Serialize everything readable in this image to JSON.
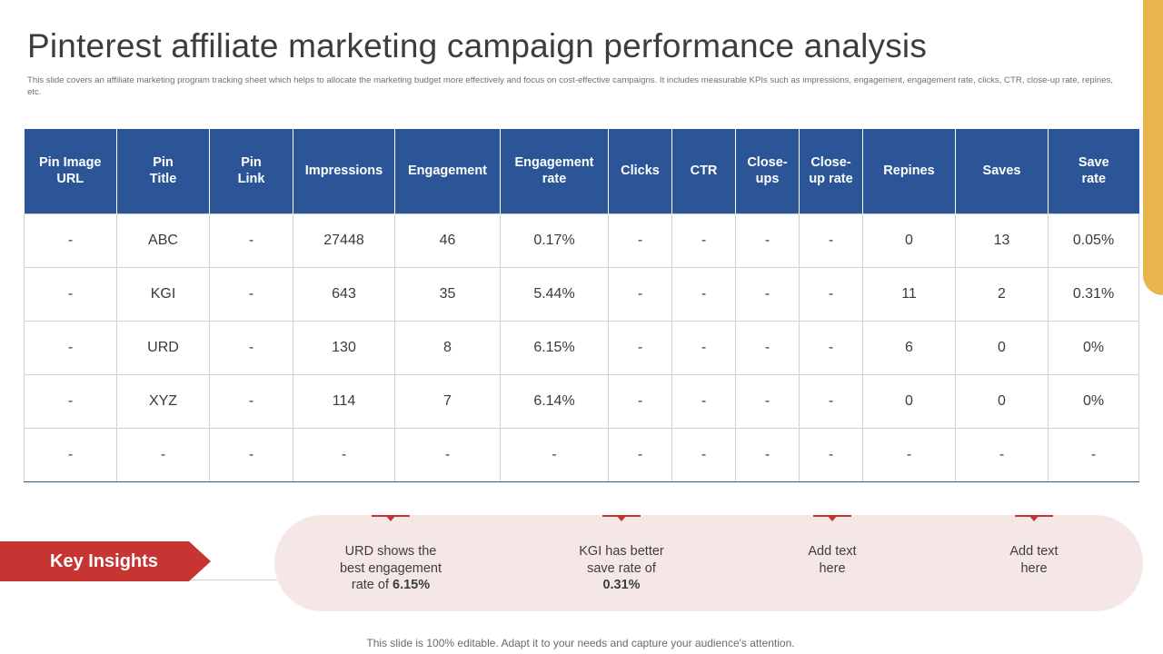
{
  "title": "Pinterest affiliate marketing campaign performance analysis",
  "subtitle": "This slide covers an affiliate marketing program tracking sheet which helps to allocate the marketing budget more effectively and focus on cost-effective campaigns. It includes measurable KPIs  such as impressions, engagement,  engagement rate, clicks, CTR,  close-up rate, repines, etc.",
  "colors": {
    "header_blue": "#2b5597",
    "accent_red": "#c73533",
    "accent_gold": "#e8b64c",
    "band_pink": "#f6e7e7"
  },
  "table": {
    "headers": [
      [
        "Pin Image",
        "URL"
      ],
      [
        "Pin",
        "Title"
      ],
      [
        "Pin",
        "Link"
      ],
      [
        "Impressions"
      ],
      [
        "Engagement"
      ],
      [
        "Engagement",
        "rate"
      ],
      [
        "Clicks"
      ],
      [
        "CTR"
      ],
      [
        "Close-",
        "ups"
      ],
      [
        "Close-",
        "up rate"
      ],
      [
        "Repines"
      ],
      [
        "Saves"
      ],
      [
        "Save",
        "rate"
      ]
    ],
    "rows": [
      [
        "-",
        "ABC",
        "-",
        "27448",
        "46",
        "0.17%",
        "-",
        "-",
        "-",
        "-",
        "0",
        "13",
        "0.05%"
      ],
      [
        "-",
        "KGI",
        "-",
        "643",
        "35",
        "5.44%",
        "-",
        "-",
        "-",
        "-",
        "11",
        "2",
        "0.31%"
      ],
      [
        "-",
        "URD",
        "-",
        "130",
        "8",
        "6.15%",
        "-",
        "-",
        "-",
        "-",
        "6",
        "0",
        "0%"
      ],
      [
        "-",
        "XYZ",
        "-",
        "114",
        "7",
        "6.14%",
        "-",
        "-",
        "-",
        "-",
        "0",
        "0",
        "0%"
      ],
      [
        "-",
        "-",
        "-",
        "-",
        "-",
        "-",
        "-",
        "-",
        "-",
        "-",
        "-",
        "-",
        "-"
      ]
    ]
  },
  "insights": {
    "label": "Key Insights",
    "items": [
      {
        "lines": [
          "URD shows the",
          "best engagement"
        ],
        "last_prefix": "rate of ",
        "last_bold": "6.15%"
      },
      {
        "lines": [
          "KGI has better",
          "save rate of"
        ],
        "last_prefix": "",
        "last_bold": "0.31%"
      },
      {
        "lines": [
          "Add text",
          "here"
        ],
        "last_prefix": "",
        "last_bold": ""
      },
      {
        "lines": [
          "Add text",
          "here"
        ],
        "last_prefix": "",
        "last_bold": ""
      }
    ]
  },
  "footer": "This slide is 100% editable. Adapt it to your needs and capture your audience's attention."
}
